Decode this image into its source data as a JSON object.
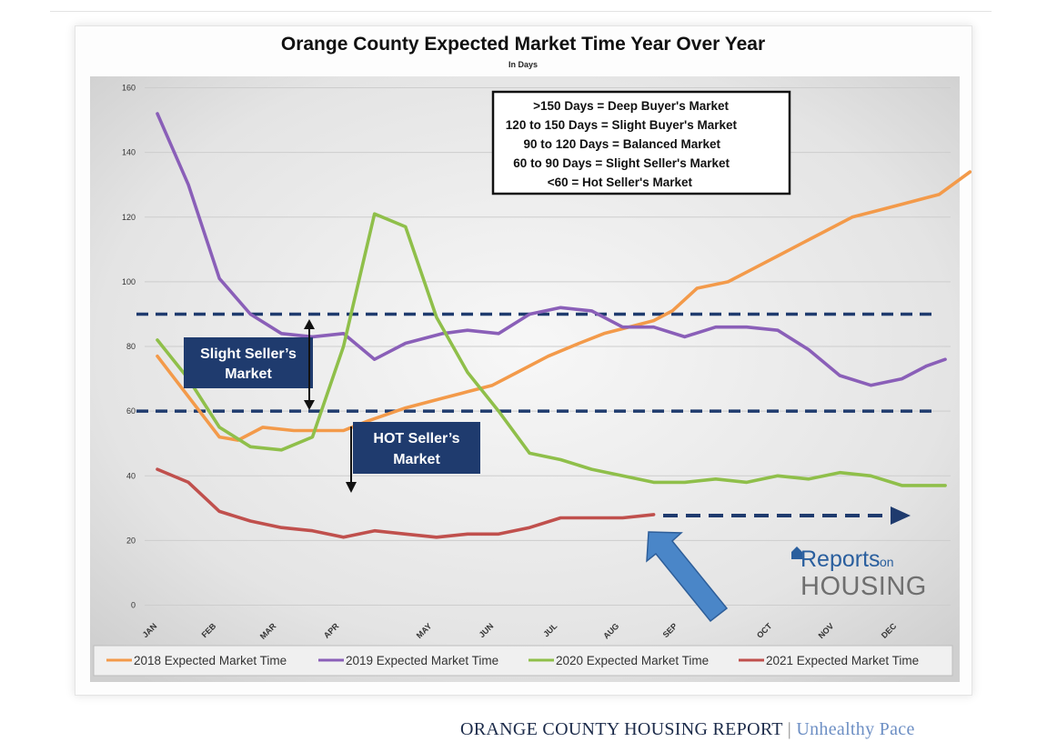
{
  "chart_data": {
    "type": "line",
    "title": "Orange County Expected Market Time Year Over Year",
    "subtitle": "In Days",
    "categories": [
      "JAN",
      "FEB",
      "MAR",
      "APR",
      "MAY",
      "JUN",
      "JUL",
      "AUG",
      "SEP",
      "OCT",
      "NOV",
      "DEC"
    ],
    "ylim": [
      0,
      160
    ],
    "yticks": [
      0,
      20,
      40,
      60,
      80,
      100,
      120,
      140,
      160
    ],
    "grid": true,
    "legend_position": "bottom",
    "series": [
      {
        "name": "2018 Expected Market Time",
        "color": "#f39a4a",
        "points": [
          [
            0,
            77
          ],
          [
            1,
            52
          ],
          [
            1.3,
            51
          ],
          [
            1.7,
            55
          ],
          [
            2.2,
            54
          ],
          [
            2.5,
            54
          ],
          [
            3,
            54
          ],
          [
            3.4,
            57
          ],
          [
            4,
            61
          ],
          [
            4.6,
            64
          ],
          [
            5,
            66
          ],
          [
            5.4,
            68
          ],
          [
            5.8,
            72
          ],
          [
            6.3,
            77
          ],
          [
            6.8,
            81
          ],
          [
            7.2,
            84
          ],
          [
            7.6,
            86
          ],
          [
            8,
            88
          ],
          [
            8.3,
            91
          ],
          [
            8.7,
            98
          ],
          [
            9.2,
            100
          ],
          [
            9.6,
            104
          ],
          [
            10,
            108
          ],
          [
            10.4,
            112
          ],
          [
            10.8,
            116
          ],
          [
            11.2,
            120
          ],
          [
            11.6,
            122
          ],
          [
            12,
            124
          ],
          [
            12.6,
            127
          ],
          [
            13.1,
            134
          ]
        ]
      },
      {
        "name": "2019 Expected Market Time",
        "color": "#8a5fb8",
        "points": [
          [
            0,
            152
          ],
          [
            0.5,
            130
          ],
          [
            1,
            101
          ],
          [
            1.5,
            90
          ],
          [
            2,
            84
          ],
          [
            2.5,
            83
          ],
          [
            3,
            84
          ],
          [
            3.5,
            76
          ],
          [
            4,
            81
          ],
          [
            4.6,
            84
          ],
          [
            5,
            85
          ],
          [
            5.5,
            84
          ],
          [
            6,
            90
          ],
          [
            6.5,
            92
          ],
          [
            7,
            91
          ],
          [
            7.5,
            86
          ],
          [
            8,
            86
          ],
          [
            8.5,
            83
          ],
          [
            9,
            86
          ],
          [
            9.5,
            86
          ],
          [
            10,
            85
          ],
          [
            10.5,
            79
          ],
          [
            11,
            71
          ],
          [
            11.5,
            68
          ],
          [
            12,
            70
          ],
          [
            12.4,
            74
          ],
          [
            12.7,
            76
          ]
        ]
      },
      {
        "name": "2020 Expected Market Time",
        "color": "#8fbf4a",
        "points": [
          [
            0,
            82
          ],
          [
            0.5,
            70
          ],
          [
            1,
            55
          ],
          [
            1.5,
            49
          ],
          [
            2,
            48
          ],
          [
            2.5,
            52
          ],
          [
            3,
            80
          ],
          [
            3.5,
            121
          ],
          [
            4,
            117
          ],
          [
            4.5,
            89
          ],
          [
            5,
            72
          ],
          [
            5.5,
            60
          ],
          [
            6,
            47
          ],
          [
            6.5,
            45
          ],
          [
            7,
            42
          ],
          [
            7.5,
            40
          ],
          [
            8,
            38
          ],
          [
            8.5,
            38
          ],
          [
            9,
            39
          ],
          [
            9.5,
            38
          ],
          [
            10,
            40
          ],
          [
            10.5,
            39
          ],
          [
            11,
            41
          ],
          [
            11.5,
            40
          ],
          [
            12,
            37
          ],
          [
            12.7,
            37
          ]
        ]
      },
      {
        "name": "2021 Expected Market Time",
        "color": "#c0504d",
        "points": [
          [
            0,
            42
          ],
          [
            0.5,
            38
          ],
          [
            1,
            29
          ],
          [
            1.5,
            26
          ],
          [
            2,
            24
          ],
          [
            2.5,
            23
          ],
          [
            3,
            21
          ],
          [
            3.5,
            23
          ],
          [
            4,
            22
          ],
          [
            4.5,
            21
          ],
          [
            5,
            22
          ],
          [
            5.5,
            22
          ],
          [
            6,
            24
          ],
          [
            6.5,
            27
          ],
          [
            7,
            27
          ],
          [
            7.5,
            27
          ],
          [
            8,
            28
          ]
        ]
      }
    ],
    "key_box": [
      ">150 Days  = Deep Buyer's Market",
      "120 to 150 Days  = Slight Buyer's Market",
      "90 to 120 Days = Balanced Market",
      "60 to 90 Days = Slight Seller's Market",
      "<60 = Hot Seller's Market"
    ],
    "threshold_lines": [
      90,
      60
    ],
    "callouts": [
      {
        "lines": [
          "Slight Seller’s",
          "Market"
        ]
      },
      {
        "lines": [
          "HOT Seller’s",
          "Market"
        ]
      }
    ],
    "logo": {
      "line1": "Reports",
      "line1b": "on",
      "line2": "HOUSING"
    },
    "colors": {
      "navy": "#1f3b6e",
      "blue_arrow": "#4a86c8",
      "plot_bg": "#e8e8e8"
    }
  },
  "footer": {
    "title": "ORANGE COUNTY HOUSING REPORT",
    "separator": "|",
    "subtitle": "Unhealthy Pace"
  }
}
